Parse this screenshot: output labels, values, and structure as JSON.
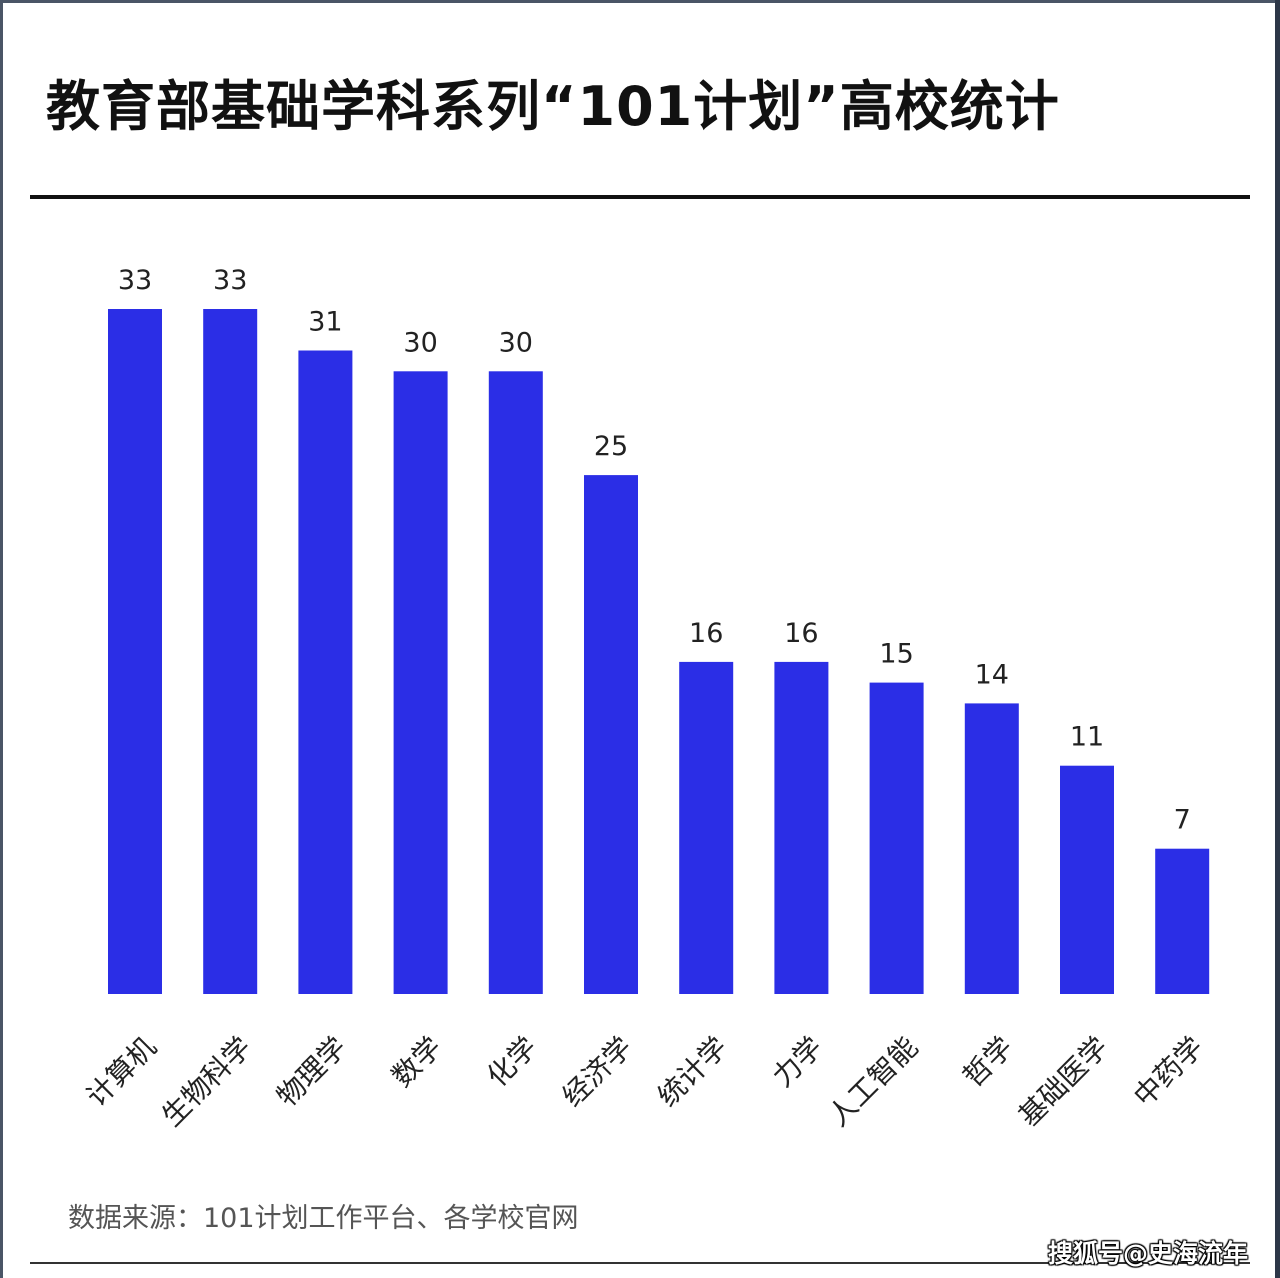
{
  "title": "教育部基础学科系列“101计划”高校统计",
  "source": "数据来源：101计划工作平台、各学校官网",
  "watermark": "搜狐号@史海流年",
  "colors": {
    "bar": "#2b2ee6",
    "text": "#222222",
    "title": "#111111"
  },
  "chart_data": {
    "type": "bar",
    "title": "教育部基础学科系列“101计划”高校统计",
    "xlabel": "",
    "ylabel": "",
    "ylim": [
      0,
      33
    ],
    "grid": false,
    "legend": "none",
    "categories": [
      "计算机",
      "生物科学",
      "物理学",
      "数学",
      "化学",
      "经济学",
      "统计学",
      "力学",
      "人工智能",
      "哲学",
      "基础医学",
      "中药学"
    ],
    "values": [
      33,
      33,
      31,
      30,
      30,
      25,
      16,
      16,
      15,
      14,
      11,
      7
    ]
  }
}
